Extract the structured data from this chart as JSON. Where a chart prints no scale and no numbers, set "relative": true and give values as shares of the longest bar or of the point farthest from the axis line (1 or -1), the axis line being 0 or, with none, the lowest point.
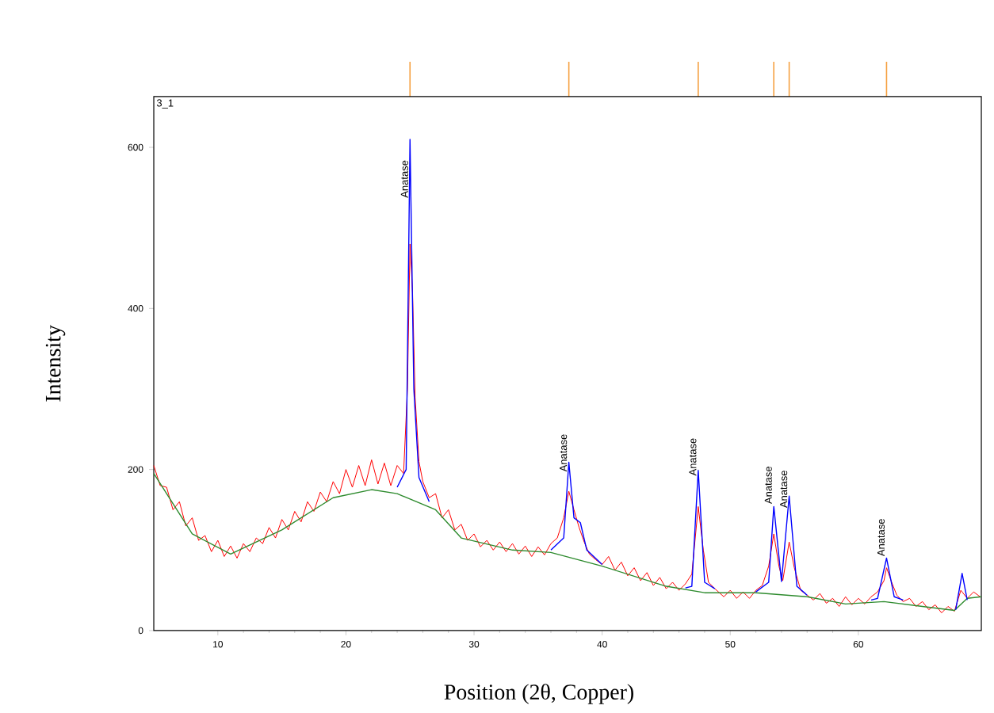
{
  "chart_data": [
    {
      "type": "bar",
      "relative": true,
      "tick_labels": false,
      "xlim": [
        5,
        69.6
      ],
      "color": "#f5a040",
      "x": [
        25.0,
        37.4,
        47.5,
        53.4,
        54.6,
        62.2
      ],
      "values": [
        1,
        1,
        1,
        1,
        1,
        1
      ]
    },
    {
      "type": "line",
      "xlabel": "Position (2θ, Copper)",
      "ylabel": "Intensity",
      "xlim": [
        5,
        69.6
      ],
      "ylim": [
        0,
        663
      ],
      "xticks": [
        10,
        20,
        30,
        40,
        50,
        60
      ],
      "yticks": [
        0,
        200,
        400,
        600
      ],
      "series": [
        {
          "color": "#ff0000",
          "x": [
            5,
            5.5,
            6,
            6.5,
            7,
            7.5,
            8,
            8.5,
            9,
            9.5,
            10,
            10.5,
            11,
            11.5,
            12,
            12.5,
            13,
            13.5,
            14,
            14.5,
            15,
            15.5,
            16,
            16.5,
            17,
            17.5,
            18,
            18.5,
            19,
            19.5,
            20,
            20.5,
            21,
            21.5,
            22,
            22.5,
            23,
            23.5,
            24,
            24.5,
            24.8,
            25.0,
            25.2,
            25.4,
            25.7,
            26,
            26.5,
            27,
            27.5,
            28,
            28.5,
            29,
            29.5,
            30,
            30.5,
            31,
            31.5,
            32,
            32.5,
            33,
            33.5,
            34,
            34.5,
            35,
            35.5,
            36,
            36.5,
            37,
            37.4,
            37.8,
            38.2,
            38.6,
            39,
            39.5,
            40,
            40.5,
            41,
            41.5,
            42,
            42.5,
            43,
            43.5,
            44,
            44.5,
            45,
            45.5,
            46,
            46.5,
            47,
            47.5,
            47.9,
            48.3,
            48.8,
            49.5,
            50,
            50.5,
            51,
            51.5,
            52,
            52.5,
            53,
            53.4,
            53.8,
            54.1,
            54.6,
            55,
            55.5,
            56,
            56.5,
            57,
            57.5,
            58,
            58.5,
            59,
            59.5,
            60,
            60.5,
            61,
            61.5,
            62,
            62.2,
            62.6,
            63,
            63.5,
            64,
            64.5,
            65,
            65.5,
            66,
            66.5,
            67,
            67.5,
            68,
            68.5,
            69,
            69.5
          ],
          "values": [
            205,
            180,
            178,
            150,
            160,
            130,
            140,
            112,
            118,
            98,
            112,
            92,
            105,
            90,
            108,
            98,
            115,
            108,
            128,
            115,
            138,
            125,
            148,
            135,
            160,
            148,
            172,
            160,
            185,
            170,
            200,
            178,
            205,
            180,
            212,
            182,
            208,
            180,
            205,
            195,
            300,
            480,
            420,
            290,
            210,
            185,
            165,
            170,
            140,
            150,
            125,
            132,
            112,
            120,
            104,
            112,
            100,
            110,
            98,
            108,
            95,
            105,
            92,
            104,
            94,
            108,
            115,
            140,
            173,
            150,
            128,
            110,
            95,
            88,
            82,
            92,
            75,
            85,
            68,
            78,
            62,
            72,
            56,
            66,
            52,
            60,
            50,
            58,
            70,
            154,
            100,
            60,
            52,
            42,
            50,
            40,
            48,
            40,
            50,
            56,
            80,
            120,
            80,
            62,
            110,
            78,
            50,
            44,
            38,
            46,
            34,
            40,
            30,
            42,
            32,
            40,
            33,
            42,
            48,
            62,
            78,
            60,
            44,
            36,
            40,
            30,
            36,
            26,
            32,
            22,
            30,
            24,
            50,
            40,
            48,
            42
          ]
        },
        {
          "color": "#2e8b2e",
          "x": [
            5,
            8,
            11,
            15,
            19,
            22,
            24,
            27,
            29,
            33,
            36,
            40,
            45,
            48,
            52,
            56,
            59,
            62,
            65,
            67.5,
            68.5,
            69.6
          ],
          "values": [
            195,
            120,
            95,
            125,
            165,
            175,
            170,
            150,
            115,
            100,
            97,
            80,
            55,
            47,
            47,
            42,
            33,
            36,
            30,
            25,
            40,
            42
          ]
        },
        {
          "color": "#0000ff",
          "x": [
            24,
            24.7,
            25.0,
            25.3,
            25.7,
            26.5,
            27,
            36,
            37.0,
            37.4,
            37.8,
            38.3,
            38.8,
            40,
            41,
            46.5,
            47.0,
            47.5,
            48.0,
            48.8,
            50,
            52,
            53.0,
            53.4,
            54.0,
            54.6,
            55.2,
            56,
            57,
            61,
            61.5,
            62.2,
            62.8,
            63.5,
            64,
            67.6,
            68.1,
            68.5
          ],
          "values": [
            178,
            200,
            610,
            300,
            190,
            160,
            null,
            100,
            115,
            209,
            140,
            134,
            100,
            82,
            null,
            53,
            55,
            199,
            60,
            52,
            null,
            48,
            60,
            154,
            61,
            167,
            55,
            44,
            null,
            38,
            40,
            90,
            42,
            38,
            null,
            26,
            71,
            38
          ]
        }
      ],
      "annotations": [
        "3_1",
        {
          "text": "Anatase",
          "x": 25.0,
          "y": 535
        },
        {
          "text": "Anatase",
          "x": 37.4,
          "y": 195
        },
        {
          "text": "Anatase",
          "x": 47.5,
          "y": 190
        },
        {
          "text": "Anatase",
          "x": 53.4,
          "y": 155
        },
        {
          "text": "Anatase",
          "x": 54.6,
          "y": 150
        },
        {
          "text": "Anatase",
          "x": 62.2,
          "y": 90
        }
      ]
    }
  ]
}
